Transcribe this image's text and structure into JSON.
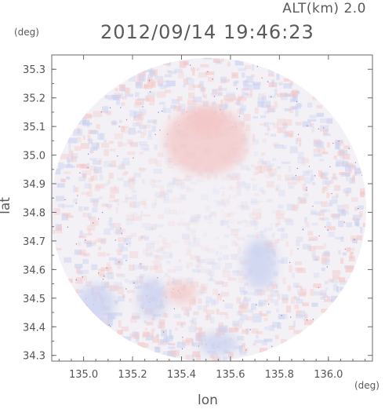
{
  "header": {
    "altitude_label": "ALT(km) 2.0",
    "datetime": "2012/09/14 19:46:23"
  },
  "chart_data": {
    "type": "heatmap",
    "title": "2012/09/14 19:46:23",
    "subtitle": "ALT(km) 2.0",
    "xlabel": "lon",
    "ylabel": "lat",
    "x_unit": "(deg)",
    "y_unit": "(deg)",
    "xlim": [
      134.87,
      136.18
    ],
    "ylim": [
      34.28,
      35.35
    ],
    "x_ticks": [
      {
        "value": 135.0,
        "label": "135.0"
      },
      {
        "value": 135.2,
        "label": "135.2"
      },
      {
        "value": 135.4,
        "label": "135.4"
      },
      {
        "value": 135.6,
        "label": "135.6"
      },
      {
        "value": 135.8,
        "label": "135.8"
      },
      {
        "value": 136.0,
        "label": "136.0"
      }
    ],
    "y_ticks": [
      {
        "value": 34.3,
        "label": "34.3"
      },
      {
        "value": 34.4,
        "label": "34.4"
      },
      {
        "value": 34.5,
        "label": "34.5"
      },
      {
        "value": 34.6,
        "label": "34.6"
      },
      {
        "value": 34.7,
        "label": "34.7"
      },
      {
        "value": 34.8,
        "label": "34.8"
      },
      {
        "value": 34.9,
        "label": "34.9"
      },
      {
        "value": 35.0,
        "label": "35.0"
      },
      {
        "value": 35.1,
        "label": "35.1"
      },
      {
        "value": 35.2,
        "label": "35.2"
      },
      {
        "value": 35.3,
        "label": "35.3"
      }
    ],
    "radar_center": {
      "lon": 135.51,
      "lat": 34.81
    },
    "radar_range_deg": {
      "lon": 0.645,
      "lat": 0.53
    },
    "colors": {
      "positive": "#f4c6c6",
      "negative": "#c9d0f0",
      "neutral": "#f3f1f6",
      "axis": "#6a6a6a"
    },
    "regions": [
      {
        "kind": "positive",
        "lon": 135.5,
        "lat": 35.05,
        "rlon": 0.17,
        "rlat": 0.12
      },
      {
        "kind": "positive",
        "lon": 135.5,
        "lat": 35.12,
        "rlon": 0.07,
        "rlat": 0.05
      },
      {
        "kind": "negative",
        "lon": 135.72,
        "lat": 34.62,
        "rlon": 0.07,
        "rlat": 0.09
      },
      {
        "kind": "negative",
        "lon": 135.28,
        "lat": 34.5,
        "rlon": 0.06,
        "rlat": 0.07
      },
      {
        "kind": "negative",
        "lon": 135.55,
        "lat": 34.34,
        "rlon": 0.08,
        "rlat": 0.04
      },
      {
        "kind": "negative",
        "lon": 135.05,
        "lat": 34.48,
        "rlon": 0.08,
        "rlat": 0.07
      },
      {
        "kind": "positive",
        "lon": 135.4,
        "lat": 34.52,
        "rlon": 0.06,
        "rlat": 0.04
      }
    ]
  }
}
